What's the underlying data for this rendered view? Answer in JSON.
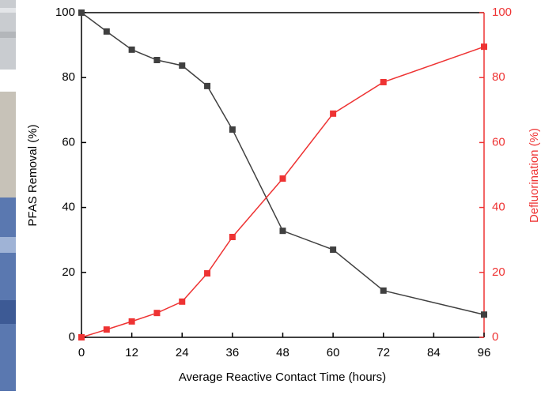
{
  "chart_data": {
    "type": "line",
    "xlabel": "Average Reactive Contact Time (hours)",
    "ylabel": "PFAS Removal (%)",
    "y2label": "Defluorination (%)",
    "x": [
      0,
      6,
      12,
      18,
      24,
      30,
      36,
      48,
      60,
      72,
      96
    ],
    "series": [
      {
        "name": "PFAS Removal (%)",
        "color": "#404040",
        "values": [
          100,
          94.2,
          88.6,
          85.4,
          83.7,
          77.4,
          64,
          32.8,
          27,
          14.4,
          7
        ]
      },
      {
        "name": "Defluorination (%)",
        "color": "#ee3333",
        "axis": "y2",
        "values": [
          0,
          2.4,
          4.9,
          7.5,
          11,
          19.7,
          30.9,
          48.9,
          68.9,
          78.6,
          89.5
        ]
      }
    ],
    "xlim": [
      0,
      96
    ],
    "xticks": [
      0,
      12,
      24,
      36,
      48,
      60,
      72,
      84,
      96
    ],
    "ylim": [
      0,
      100
    ],
    "yticks": [
      0,
      20,
      40,
      60,
      80,
      100
    ],
    "y2lim": [
      0,
      100
    ],
    "y2ticks": [
      0,
      20,
      40,
      60,
      80,
      100
    ]
  }
}
